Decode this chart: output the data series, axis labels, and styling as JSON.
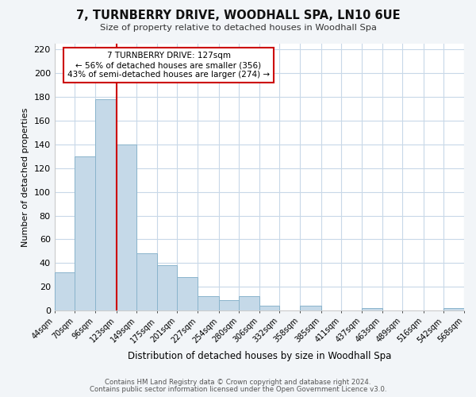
{
  "title": "7, TURNBERRY DRIVE, WOODHALL SPA, LN10 6UE",
  "subtitle": "Size of property relative to detached houses in Woodhall Spa",
  "xlabel": "Distribution of detached houses by size in Woodhall Spa",
  "ylabel": "Number of detached properties",
  "bar_color": "#c5d9e8",
  "bar_edge_color": "#8ab4cc",
  "vline_color": "#cc0000",
  "vline_x": 123,
  "bin_edges": [
    44,
    70,
    96,
    123,
    149,
    175,
    201,
    227,
    254,
    280,
    306,
    332,
    358,
    385,
    411,
    437,
    463,
    489,
    516,
    542,
    568
  ],
  "bar_heights": [
    32,
    130,
    178,
    140,
    48,
    38,
    28,
    12,
    9,
    12,
    4,
    0,
    4,
    0,
    0,
    2,
    0,
    0,
    0,
    2
  ],
  "tick_labels": [
    "44sqm",
    "70sqm",
    "96sqm",
    "123sqm",
    "149sqm",
    "175sqm",
    "201sqm",
    "227sqm",
    "254sqm",
    "280sqm",
    "306sqm",
    "332sqm",
    "358sqm",
    "385sqm",
    "411sqm",
    "437sqm",
    "463sqm",
    "489sqm",
    "516sqm",
    "542sqm",
    "568sqm"
  ],
  "ylim": [
    0,
    225
  ],
  "yticks": [
    0,
    20,
    40,
    60,
    80,
    100,
    120,
    140,
    160,
    180,
    200,
    220
  ],
  "annotation_title": "7 TURNBERRY DRIVE: 127sqm",
  "annotation_line1": "← 56% of detached houses are smaller (356)",
  "annotation_line2": "43% of semi-detached houses are larger (274) →",
  "footer1": "Contains HM Land Registry data © Crown copyright and database right 2024.",
  "footer2": "Contains public sector information licensed under the Open Government Licence v3.0.",
  "background_color": "#f2f5f8",
  "plot_bg_color": "#ffffff",
  "grid_color": "#c8d8e8"
}
